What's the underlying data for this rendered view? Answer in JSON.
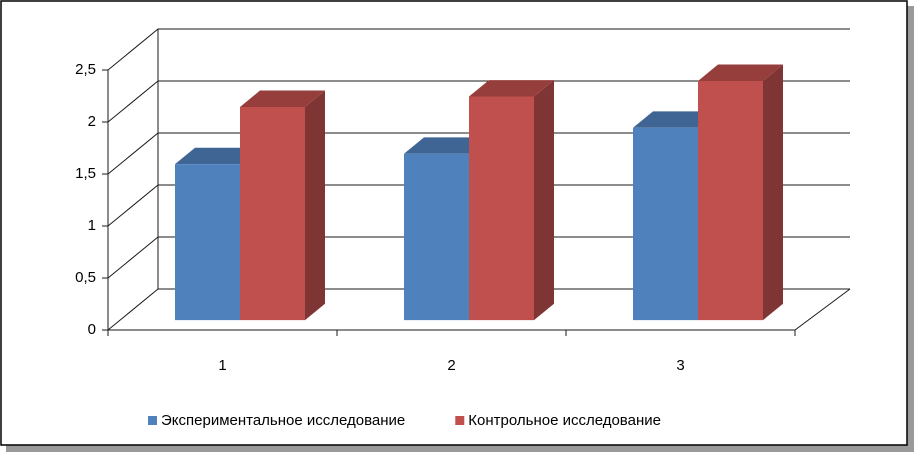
{
  "chart_data": {
    "type": "bar3d",
    "categories": [
      "1",
      "2",
      "3"
    ],
    "series": [
      {
        "name": "Экспериментальное исследование",
        "color": "#4f81bd",
        "values": [
          1.5,
          1.6,
          1.85
        ]
      },
      {
        "name": "Контрольное исследование",
        "color": "#c0504d",
        "values": [
          2.05,
          2.15,
          2.3
        ]
      }
    ],
    "ylim": [
      0,
      2.5
    ],
    "yticks": [
      0,
      {
        "value": 0.5,
        "label": "0,5"
      },
      1,
      {
        "value": 1.5,
        "label": "1,5"
      },
      2,
      {
        "value": 2.5,
        "label": "2,5"
      }
    ],
    "grid": true,
    "legend": "bottom"
  }
}
